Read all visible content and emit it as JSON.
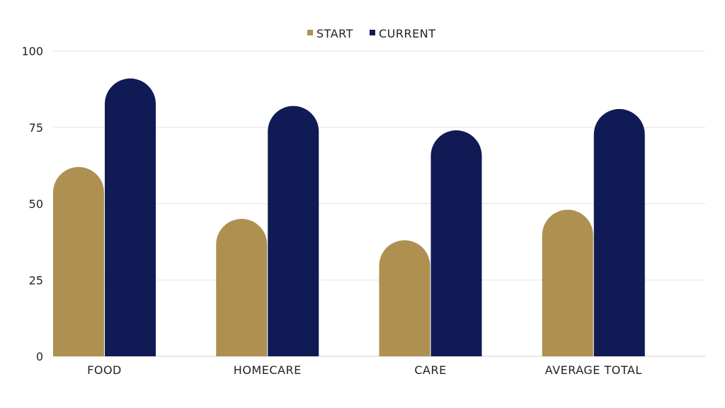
{
  "chart_data": {
    "type": "bar",
    "categories": [
      "FOOD",
      "HOMECARE",
      "CARE",
      "AVERAGE  TOTAL"
    ],
    "series": [
      {
        "name": "START",
        "values": [
          62,
          45,
          38,
          48
        ],
        "color": "#ae9051"
      },
      {
        "name": "CURRENT",
        "values": [
          91,
          82,
          74,
          81
        ],
        "color": "#101a55"
      }
    ],
    "yticks": [
      0,
      25,
      50,
      75,
      100
    ],
    "ylim": [
      0,
      100
    ],
    "grid": true,
    "legend_position": "top-center",
    "title": "",
    "xlabel": "",
    "ylabel": ""
  }
}
